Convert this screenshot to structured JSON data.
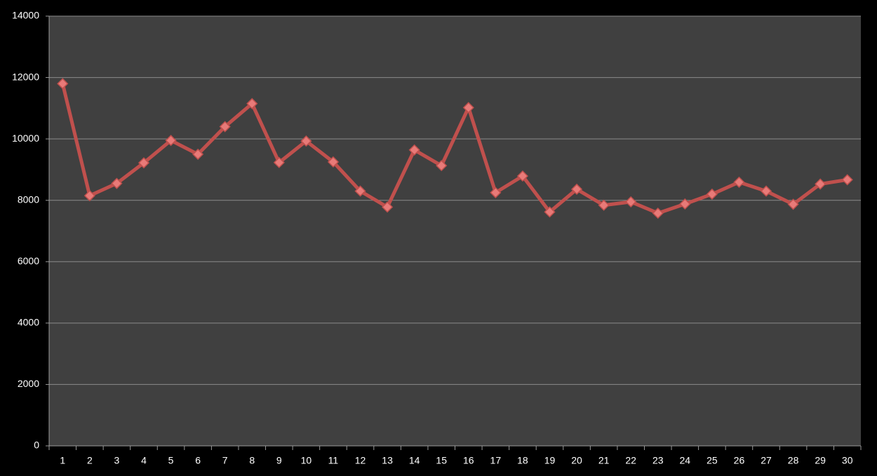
{
  "chart_data": {
    "type": "line",
    "categories": [
      "1",
      "2",
      "3",
      "4",
      "5",
      "6",
      "7",
      "8",
      "9",
      "10",
      "11",
      "12",
      "13",
      "14",
      "15",
      "16",
      "17",
      "18",
      "19",
      "20",
      "21",
      "22",
      "23",
      "24",
      "25",
      "26",
      "27",
      "28",
      "29",
      "30"
    ],
    "values": [
      11800,
      8150,
      8550,
      9220,
      9950,
      9500,
      10400,
      11150,
      9230,
      9930,
      9250,
      8300,
      7780,
      9640,
      9130,
      11020,
      8250,
      8790,
      7620,
      8360,
      7840,
      7950,
      7580,
      7880,
      8200,
      8590,
      8300,
      7870,
      8530,
      8670
    ],
    "color": "#c0504d",
    "marker_color": "#e87a78",
    "ylim": [
      0,
      14000
    ],
    "yticks": [
      0,
      2000,
      4000,
      6000,
      8000,
      10000,
      12000,
      14000
    ],
    "grid": true
  }
}
